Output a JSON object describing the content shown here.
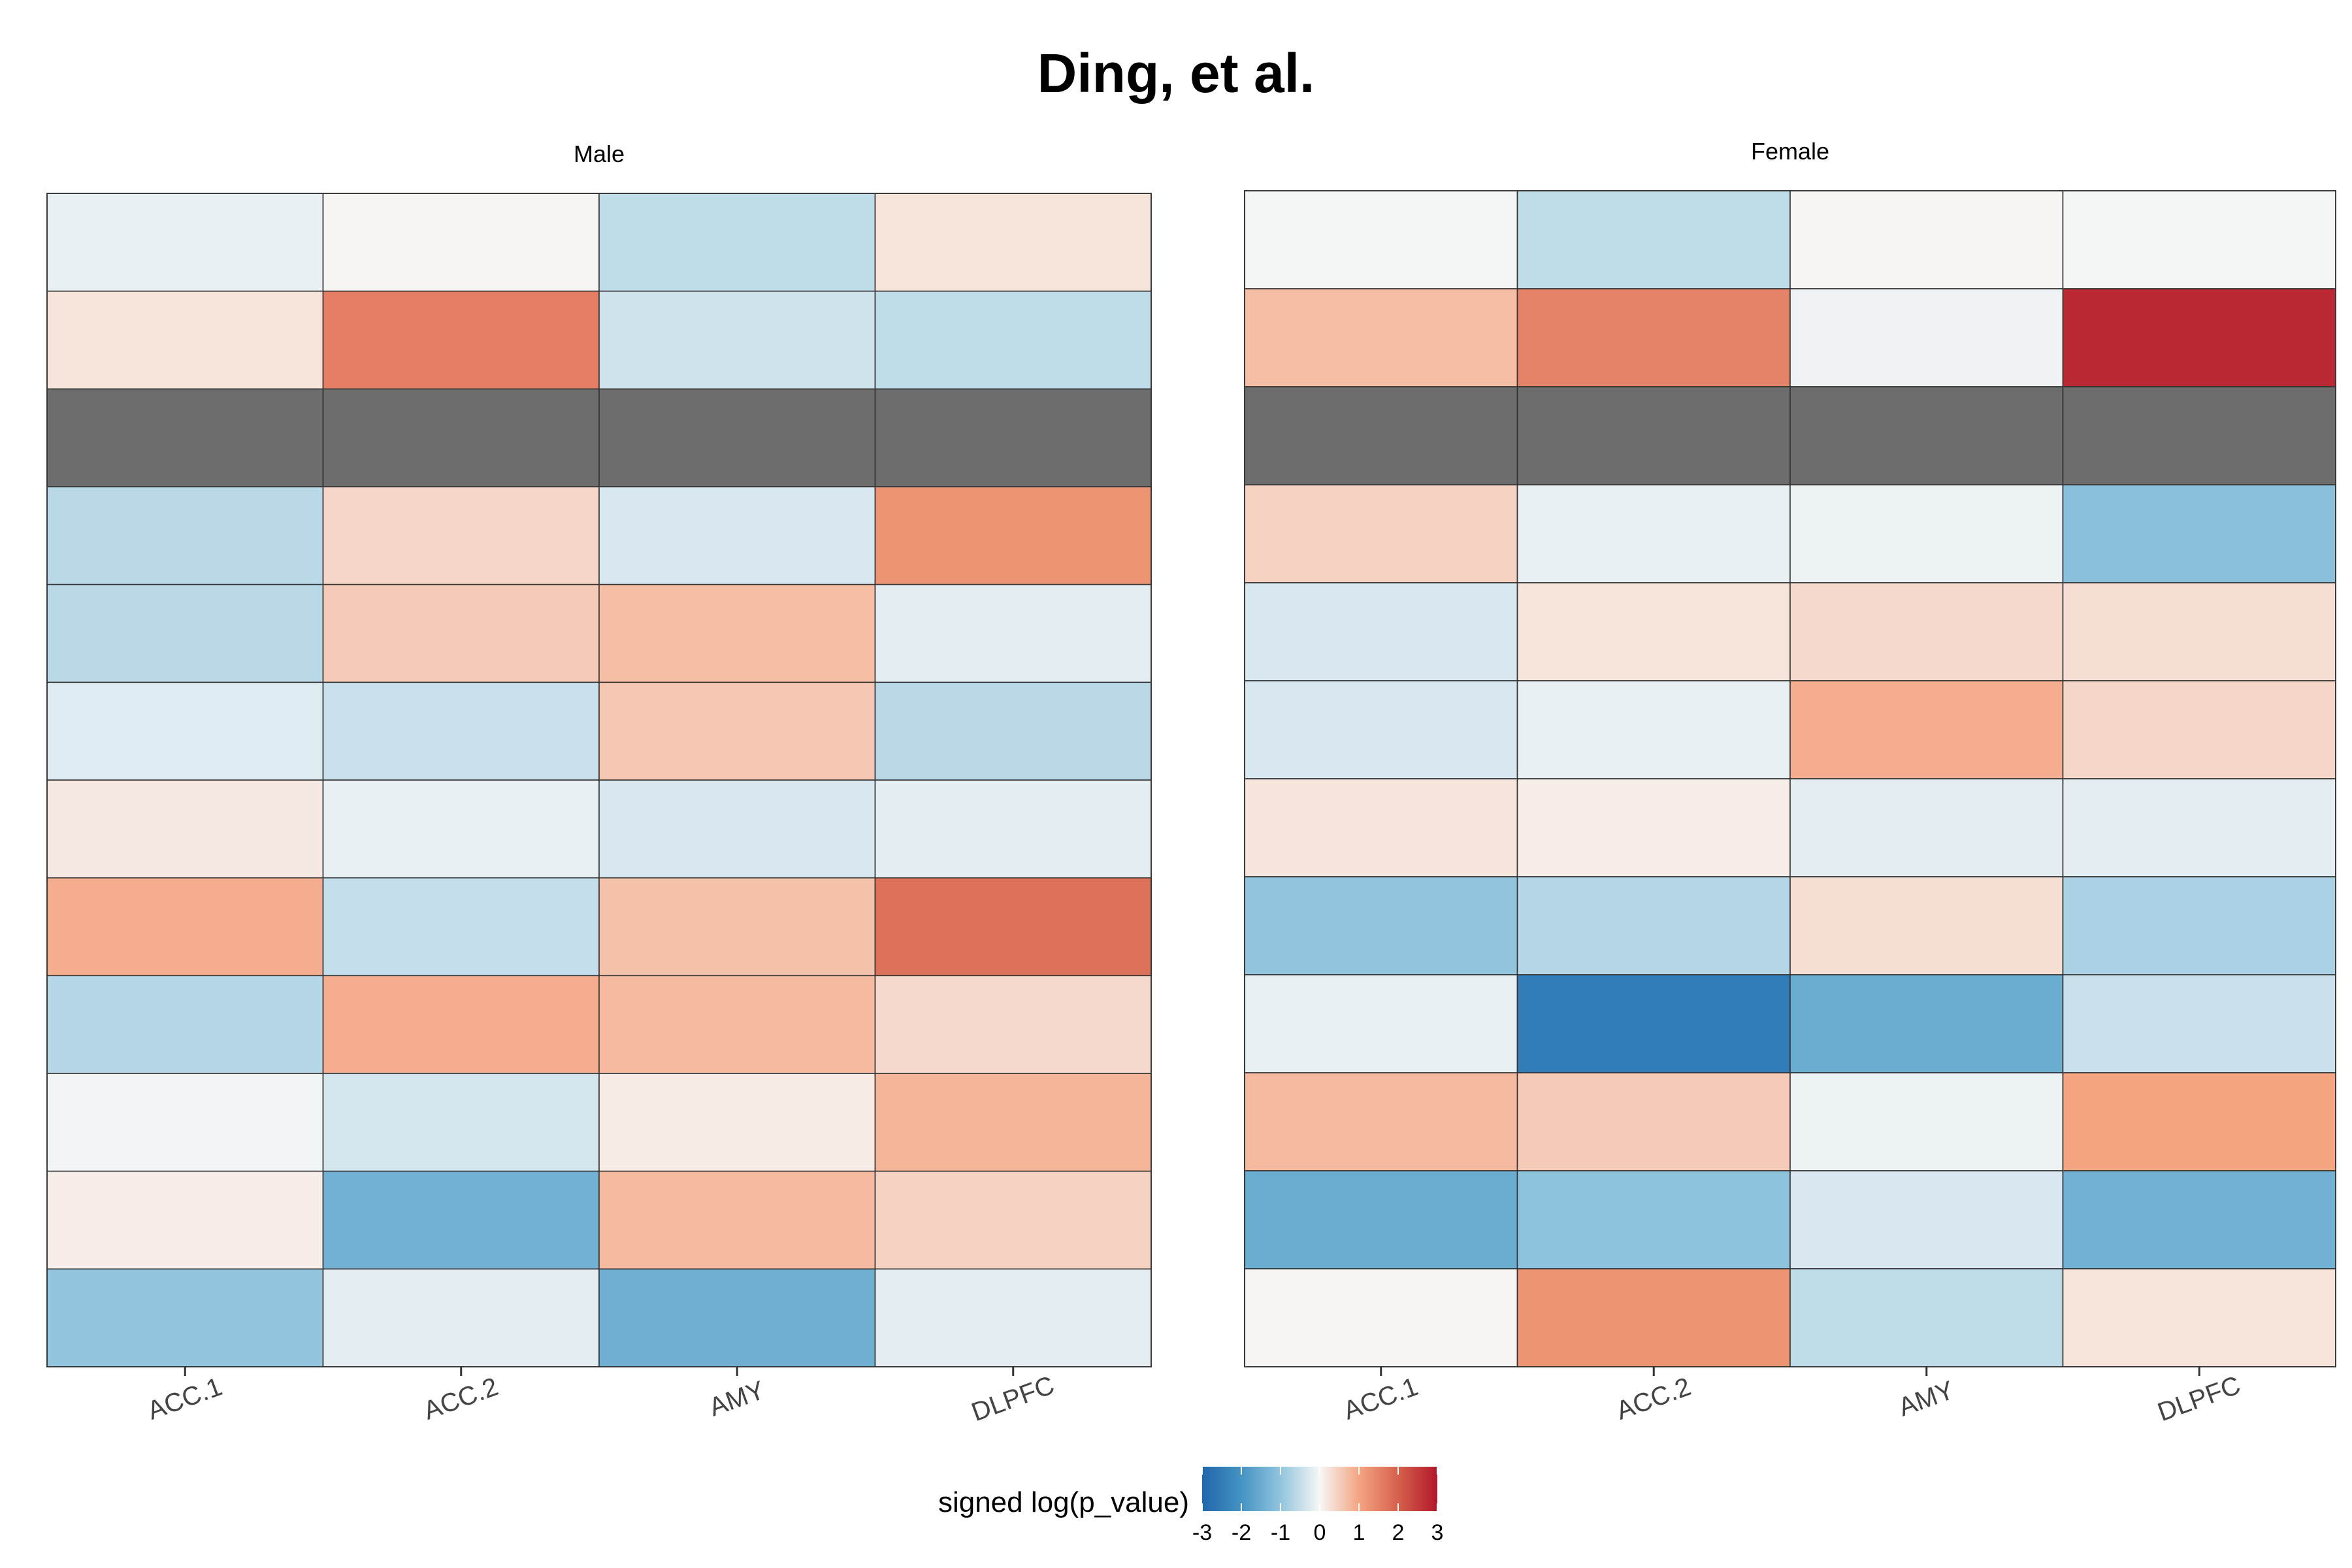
{
  "chart_data": {
    "type": "heatmap",
    "title": "Ding, et al.",
    "categories": [
      "ACC.1",
      "ACC.2",
      "AMY",
      "DLPFC"
    ],
    "legend": {
      "title": "signed log(p_value)",
      "ticks": [
        "-3",
        "-2",
        "-1",
        "0",
        "1",
        "2",
        "3"
      ],
      "range": [
        -3,
        3
      ],
      "colors": [
        "#2166ac",
        "#4393c3",
        "#92c5de",
        "#f7f7f7",
        "#f4a582",
        "#d6604d",
        "#b2182b"
      ]
    },
    "missing_color": "#6d6d6d",
    "panels": [
      {
        "name": "Male",
        "values": [
          [
            -0.15,
            0.03,
            -0.55,
            0.25
          ],
          [
            0.25,
            1.55,
            -0.4,
            -0.55
          ],
          [
            null,
            null,
            null,
            null
          ],
          [
            -0.6,
            0.4,
            -0.3,
            1.25
          ],
          [
            -0.6,
            0.55,
            0.7,
            -0.2
          ],
          [
            -0.25,
            -0.45,
            0.6,
            -0.6
          ],
          [
            0.18,
            -0.15,
            -0.3,
            -0.18
          ],
          [
            0.9,
            -0.5,
            0.65,
            1.75
          ],
          [
            -0.65,
            0.9,
            0.75,
            0.35
          ],
          [
            -0.05,
            -0.35,
            0.15,
            0.8
          ],
          [
            0.12,
            -1.4,
            0.75,
            0.45
          ],
          [
            -1.0,
            -0.2,
            -1.45,
            -0.2
          ]
        ]
      },
      {
        "name": "Female",
        "values": [
          [
            -0.03,
            -0.55,
            0.03,
            -0.03
          ],
          [
            0.7,
            1.5,
            -0.08,
            2.75
          ],
          [
            null,
            null,
            null,
            null
          ],
          [
            0.45,
            -0.15,
            -0.1,
            -1.1
          ],
          [
            -0.3,
            0.25,
            0.35,
            0.3
          ],
          [
            -0.3,
            -0.15,
            0.9,
            0.4
          ],
          [
            0.22,
            0.12,
            -0.2,
            -0.2
          ],
          [
            -1.0,
            -0.65,
            0.28,
            -0.75
          ],
          [
            -0.15,
            -2.5,
            -1.5,
            -0.45
          ],
          [
            0.75,
            0.55,
            -0.1,
            1.0
          ],
          [
            -1.5,
            -1.05,
            -0.3,
            -1.4
          ],
          [
            0.03,
            1.25,
            -0.55,
            0.25
          ]
        ]
      }
    ]
  }
}
